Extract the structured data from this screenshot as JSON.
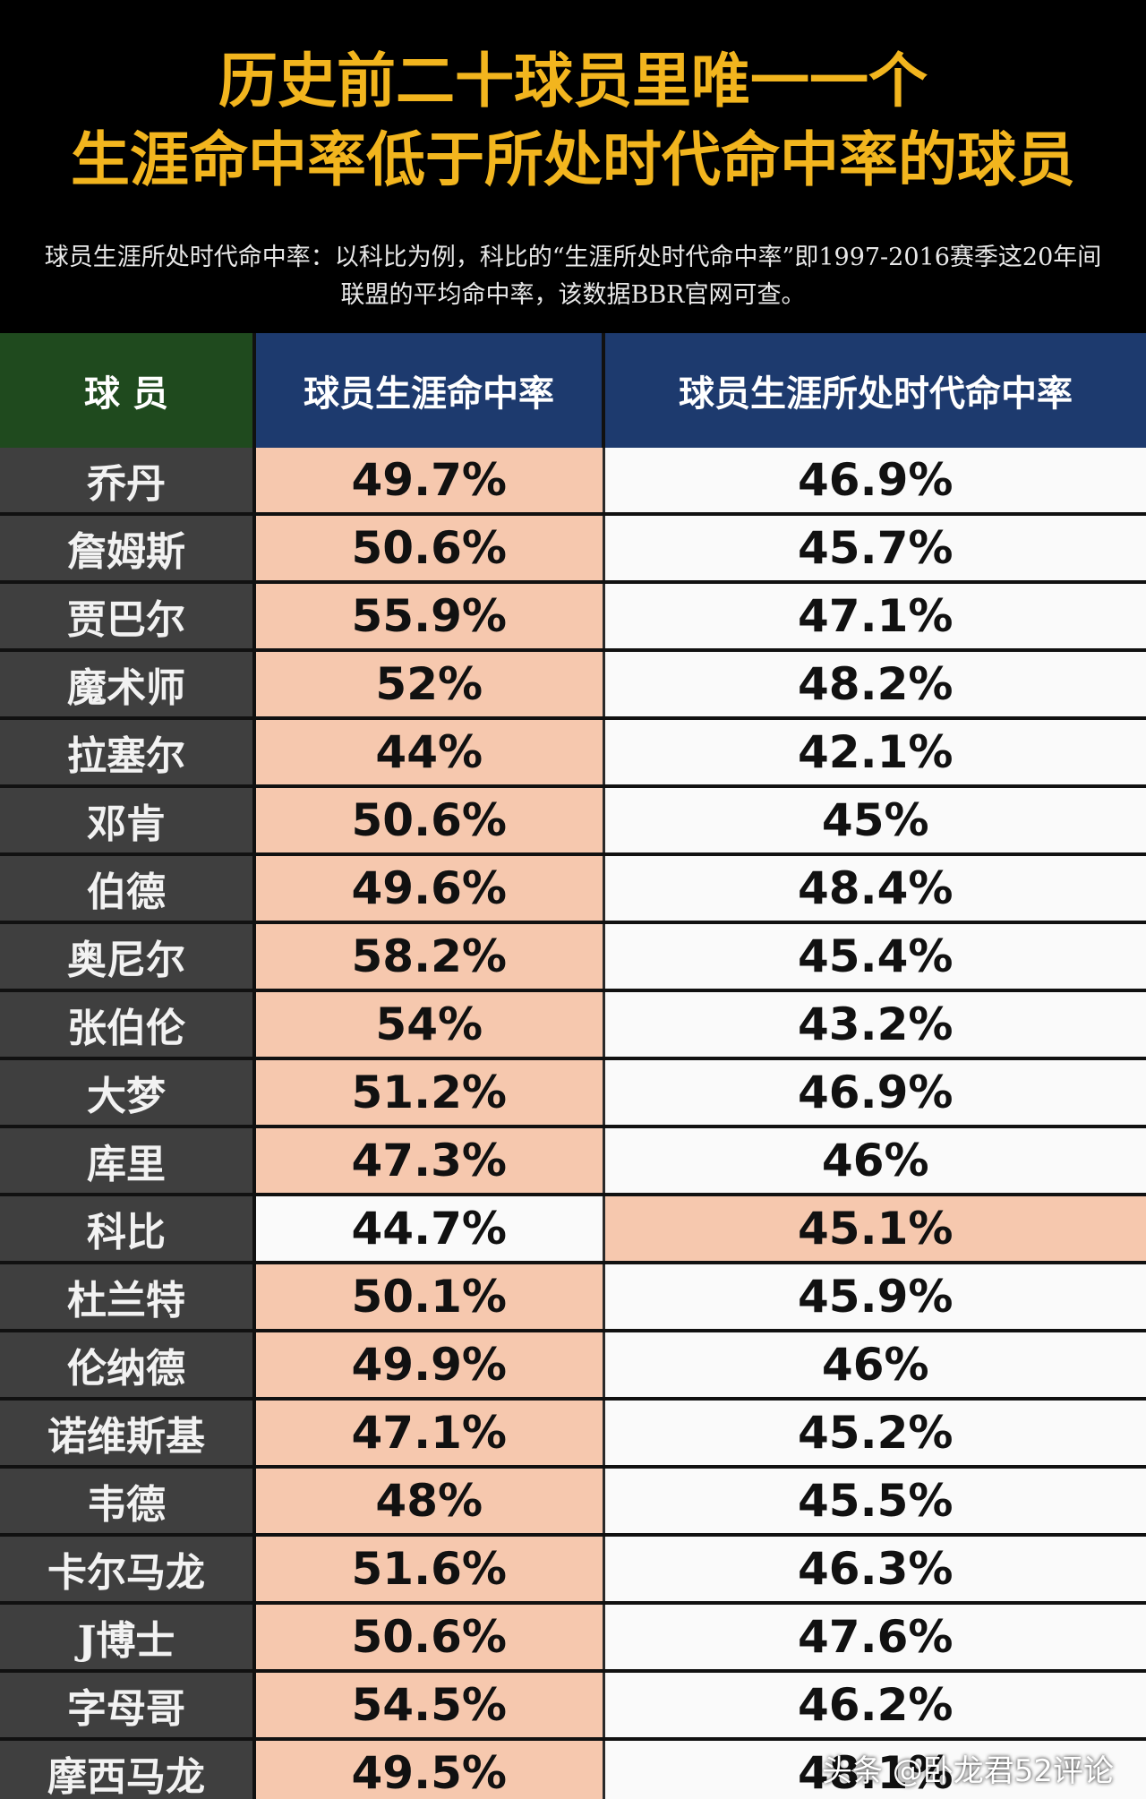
{
  "title": {
    "line1": "历史前二十球员里唯一一个",
    "line2": "生涯命中率低于所处时代命中率的球员"
  },
  "note": {
    "line1": "球员生涯所处时代命中率：以科比为例，科比的“生涯所处时代命中率”即1997-2016赛季这20年间",
    "line2": "联盟的平均命中率，该数据BBR官网可查。"
  },
  "table": {
    "headers": [
      "球 员",
      "球员生涯命中率",
      "球员生涯所处时代命中率"
    ],
    "rows": [
      {
        "name": "乔丹",
        "career": "49.7%",
        "era": "46.9%"
      },
      {
        "name": "詹姆斯",
        "career": "50.6%",
        "era": "45.7%"
      },
      {
        "name": "贾巴尔",
        "career": "55.9%",
        "era": "47.1%"
      },
      {
        "name": "魔术师",
        "career": "52%",
        "era": "48.2%"
      },
      {
        "name": "拉塞尔",
        "career": "44%",
        "era": "42.1%"
      },
      {
        "name": "邓肯",
        "career": "50.6%",
        "era": "45%"
      },
      {
        "name": "伯德",
        "career": "49.6%",
        "era": "48.4%"
      },
      {
        "name": "奥尼尔",
        "career": "58.2%",
        "era": "45.4%"
      },
      {
        "name": "张伯伦",
        "career": "54%",
        "era": "43.2%"
      },
      {
        "name": "大梦",
        "career": "51.2%",
        "era": "46.9%"
      },
      {
        "name": "库里",
        "career": "47.3%",
        "era": "46%"
      },
      {
        "name": "科比",
        "career": "44.7%",
        "era": "45.1%"
      },
      {
        "name": "杜兰特",
        "career": "50.1%",
        "era": "45.9%"
      },
      {
        "name": "伦纳德",
        "career": "49.9%",
        "era": "46%"
      },
      {
        "name": "诺维斯基",
        "career": "47.1%",
        "era": "45.2%"
      },
      {
        "name": "韦德",
        "career": "48%",
        "era": "45.5%"
      },
      {
        "name": "卡尔马龙",
        "career": "51.6%",
        "era": "46.3%"
      },
      {
        "name": "J博士",
        "career": "50.6%",
        "era": "47.6%"
      },
      {
        "name": "字母哥",
        "career": "54.5%",
        "era": "46.2%"
      },
      {
        "name": "摩西马龙",
        "career": "49.5%",
        "era": "48.1%"
      }
    ]
  },
  "colors": {
    "title": "#f2b51e",
    "highlight": "#f6c8ae",
    "name_cell": "#3f3f3f",
    "header_green": "#1f4a1e",
    "header_blue": "#1d3a6e"
  },
  "watermark": "头条 @卧龙君52评论"
}
